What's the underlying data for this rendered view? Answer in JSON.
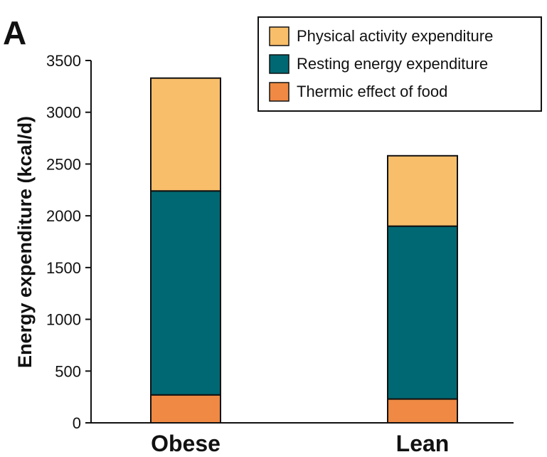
{
  "panel_label": "A",
  "colors": {
    "physical": "#F9BE6A",
    "resting": "#006872",
    "thermic": "#EF8943",
    "axis": "#111111"
  },
  "chart_data": {
    "type": "bar",
    "stacked": true,
    "categories": [
      "Obese",
      "Lean"
    ],
    "series": [
      {
        "name": "Thermic effect of food",
        "key": "thermic",
        "values": [
          270,
          230
        ]
      },
      {
        "name": "Resting energy expenditure",
        "key": "resting",
        "values": [
          1970,
          1670
        ]
      },
      {
        "name": "Physical activity expenditure",
        "key": "physical",
        "values": [
          1090,
          680
        ]
      }
    ],
    "legend_order": [
      "physical",
      "resting",
      "thermic"
    ],
    "legend_placement": "top-right",
    "title": "",
    "xlabel": "",
    "ylabel": "Energy expenditure (kcal/d)",
    "ylim": [
      0,
      3500
    ],
    "yticks": [
      0,
      500,
      1000,
      1500,
      2000,
      2500,
      3000,
      3500
    ],
    "grid": false
  }
}
